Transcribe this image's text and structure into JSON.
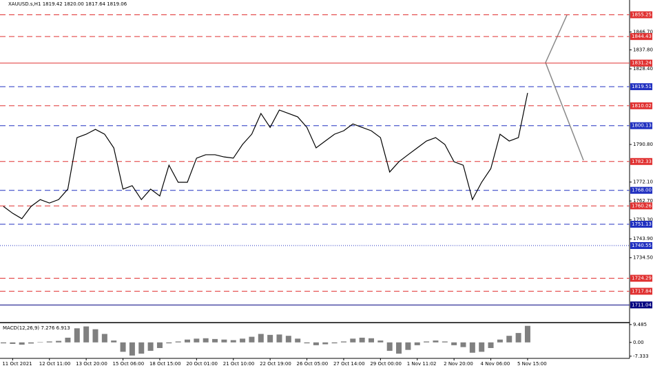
{
  "chart_data": [
    {
      "type": "line",
      "title": "XAUUSD.s,H1  1819.42 1820.00 1817.64 1819.06",
      "categories": [
        null,
        "11 Oct 2021",
        null,
        null,
        null,
        "12 Oct 11:00",
        null,
        null,
        null,
        "13 Oct 20:00",
        null,
        null,
        null,
        "15 Oct 06:00",
        null,
        null,
        null,
        "18 Oct 15:00",
        null,
        null,
        null,
        "20 Oct 01:00",
        null,
        null,
        null,
        "21 Oct 10:00",
        null,
        null,
        null,
        "22 Oct 19:00",
        null,
        null,
        null,
        "26 Oct 05:00",
        null,
        null,
        null,
        "27 Oct 14:00",
        null,
        null,
        null,
        "29 Oct 00:00",
        null,
        null,
        null,
        "1 Nov 11:02",
        null,
        null,
        null,
        "2 Nov 20:00",
        null,
        null,
        null,
        "4 Nov 06:00",
        null,
        null,
        null,
        "5 Nov 15:00"
      ],
      "series": [
        {
          "name": "XAUUSD.s",
          "color": "#000000",
          "values": [
            1760.0,
            1756.6,
            1753.9,
            1760.0,
            1763.4,
            1761.7,
            1763.4,
            1768.6,
            1794.2,
            1795.9,
            1798.3,
            1795.9,
            1789.1,
            1768.6,
            1770.3,
            1763.4,
            1768.6,
            1765.2,
            1780.5,
            1772.0,
            1772.0,
            1784.0,
            1785.7,
            1785.7,
            1784.6,
            1784.0,
            1790.8,
            1795.9,
            1806.2,
            1799.3,
            1807.9,
            1806.2,
            1804.5,
            1799.3,
            1789.1,
            1792.5,
            1795.9,
            1797.6,
            1801.0,
            1799.3,
            1797.6,
            1794.2,
            1777.1,
            1782.2,
            1785.7,
            1789.1,
            1792.5,
            1794.2,
            1790.8,
            1782.2,
            1780.5,
            1763.4,
            1772.0,
            1778.8,
            1795.9,
            1792.5,
            1794.2,
            1816.4
          ]
        }
      ],
      "ylim": [
        1702.6,
        1862.6
      ],
      "yticks": [
        {
          "value": 1846.7,
          "label": "1846.70"
        },
        {
          "value": 1837.8,
          "label": "1837.80"
        },
        {
          "value": 1828.4,
          "label": "1828.40"
        },
        {
          "value": 1790.8,
          "label": "1790.80"
        },
        {
          "value": 1772.1,
          "label": "1772.10"
        },
        {
          "value": 1762.7,
          "label": "1762.70"
        },
        {
          "value": 1753.3,
          "label": "1753.30"
        },
        {
          "value": 1743.9,
          "label": "1743.90"
        },
        {
          "value": 1734.5,
          "label": "1734.50"
        }
      ],
      "levels": [
        {
          "value": 1855.25,
          "color": "#e03030",
          "style": "dashed"
        },
        {
          "value": 1844.43,
          "color": "#e03030",
          "style": "dashed"
        },
        {
          "value": 1831.24,
          "color": "#e03030",
          "style": "solid"
        },
        {
          "value": 1819.51,
          "color": "#2030c0",
          "style": "dashed"
        },
        {
          "value": 1810.02,
          "color": "#e03030",
          "style": "dashed"
        },
        {
          "value": 1800.13,
          "color": "#2030c0",
          "style": "dashed"
        },
        {
          "value": 1782.33,
          "color": "#e03030",
          "style": "dashed"
        },
        {
          "value": 1768,
          "label": "1768.00",
          "color": "#2030c0",
          "style": "dashed"
        },
        {
          "value": 1760.26,
          "color": "#e03030",
          "style": "dashed"
        },
        {
          "value": 1751.13,
          "color": "#2030c0",
          "style": "dashed"
        },
        {
          "value": 1740.55,
          "color": "#2030c0",
          "style": "dotted"
        },
        {
          "value": 1724.29,
          "color": "#e03030",
          "style": "dashed"
        },
        {
          "value": 1717.84,
          "color": "#e03030",
          "style": "dashed"
        },
        {
          "value": 1711.04,
          "color": "#000080",
          "style": "solid"
        }
      ]
    },
    {
      "type": "bar",
      "title": "MACD(12,26,9) 7.276 6.913",
      "color": "#808080",
      "values": [
        -0.5,
        -0.8,
        -1.2,
        -0.6,
        0.2,
        0.5,
        0.8,
        2.5,
        7.5,
        8.5,
        7.0,
        4.5,
        1.0,
        -5.0,
        -7.0,
        -6.0,
        -4.5,
        -3.0,
        -0.5,
        0.5,
        1.5,
        2.0,
        2.2,
        1.8,
        1.5,
        1.2,
        2.0,
        3.0,
        4.5,
        4.0,
        4.2,
        3.5,
        2.0,
        -0.5,
        -1.5,
        -1.0,
        -0.5,
        0.5,
        2.0,
        2.5,
        2.2,
        1.0,
        -4.5,
        -6.0,
        -4.0,
        -1.5,
        0.5,
        1.0,
        0.5,
        -1.5,
        -2.5,
        -5.5,
        -5.0,
        -3.0,
        1.5,
        3.5,
        5.0,
        8.8
      ],
      "ylim": [
        -8.5,
        9.8
      ],
      "yticks": [
        {
          "value": 9.485,
          "label": "9.485"
        },
        {
          "value": 0,
          "label": "0.00"
        },
        {
          "value": -7.333,
          "label": "-7.333"
        }
      ]
    }
  ]
}
